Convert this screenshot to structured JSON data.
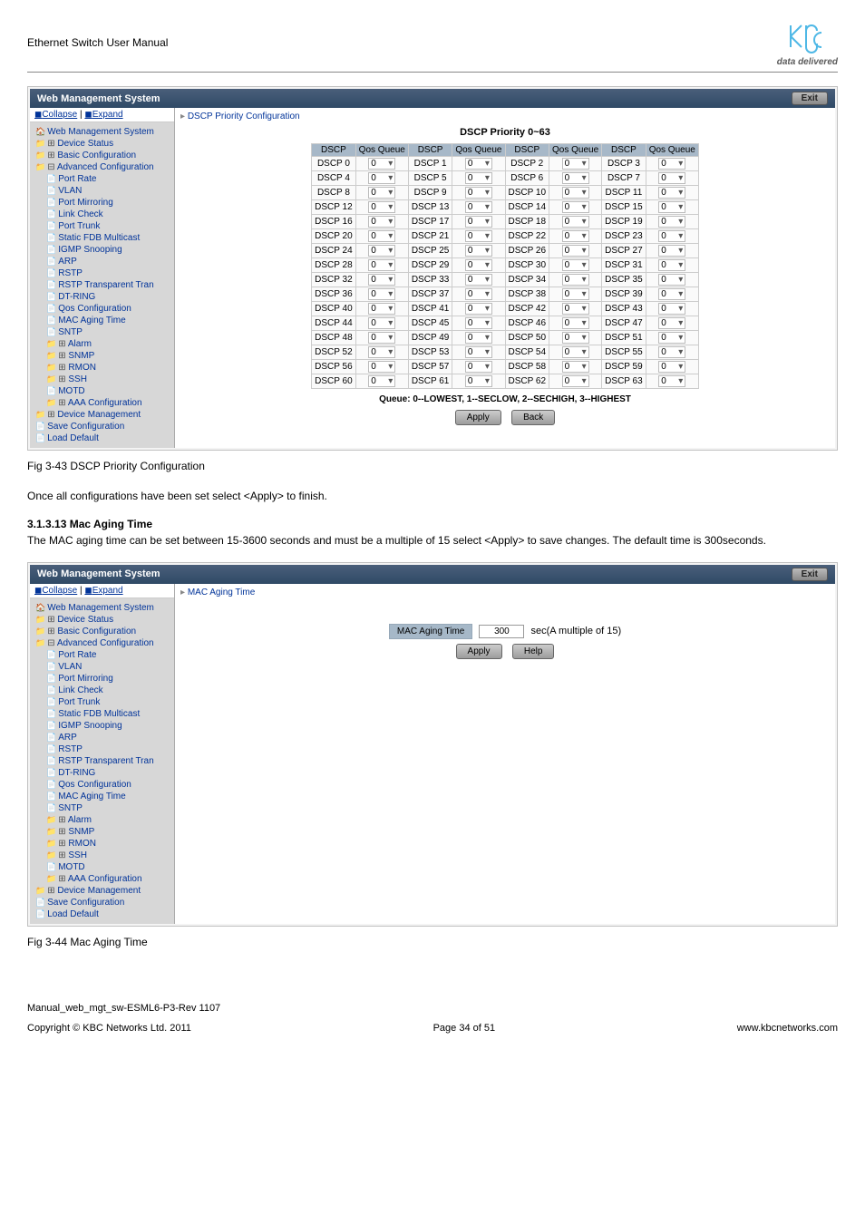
{
  "header": {
    "manual_title": "Ethernet Switch User Manual",
    "logo_tag": "data delivered"
  },
  "nav_toolbar": {
    "collapse": "Collapse",
    "expand": "Expand"
  },
  "tree": {
    "root": "Web Management System",
    "items": [
      {
        "lvl": 1,
        "icon": "folder",
        "prefix": "plus",
        "label": "Device Status"
      },
      {
        "lvl": 1,
        "icon": "folder",
        "prefix": "plus",
        "label": "Basic Configuration"
      },
      {
        "lvl": 1,
        "icon": "folder",
        "prefix": "minus",
        "label": "Advanced Configuration"
      },
      {
        "lvl": 2,
        "icon": "page",
        "label": "Port Rate"
      },
      {
        "lvl": 2,
        "icon": "page",
        "label": "VLAN"
      },
      {
        "lvl": 2,
        "icon": "page",
        "label": "Port Mirroring"
      },
      {
        "lvl": 2,
        "icon": "page",
        "label": "Link Check"
      },
      {
        "lvl": 2,
        "icon": "page",
        "label": "Port Trunk"
      },
      {
        "lvl": 2,
        "icon": "page",
        "label": "Static FDB Multicast"
      },
      {
        "lvl": 2,
        "icon": "page",
        "label": "IGMP Snooping"
      },
      {
        "lvl": 2,
        "icon": "page",
        "label": "ARP"
      },
      {
        "lvl": 2,
        "icon": "page",
        "label": "RSTP"
      },
      {
        "lvl": 2,
        "icon": "page",
        "label": "RSTP Transparent Tran"
      },
      {
        "lvl": 2,
        "icon": "page",
        "label": "DT-RING"
      },
      {
        "lvl": 2,
        "icon": "page",
        "label": "Qos Configuration"
      },
      {
        "lvl": 2,
        "icon": "page",
        "label": "MAC Aging Time"
      },
      {
        "lvl": 2,
        "icon": "page",
        "label": "SNTP"
      },
      {
        "lvl": 2,
        "icon": "folder",
        "prefix": "plus",
        "label": "Alarm"
      },
      {
        "lvl": 2,
        "icon": "folder",
        "prefix": "plus",
        "label": "SNMP"
      },
      {
        "lvl": 2,
        "icon": "folder",
        "prefix": "plus",
        "label": "RMON"
      },
      {
        "lvl": 2,
        "icon": "folder",
        "prefix": "plus",
        "label": "SSH"
      },
      {
        "lvl": 2,
        "icon": "page",
        "label": "MOTD"
      },
      {
        "lvl": 2,
        "icon": "folder",
        "prefix": "plus",
        "label": "AAA Configuration"
      },
      {
        "lvl": 1,
        "icon": "folder",
        "prefix": "plus",
        "label": "Device Management"
      },
      {
        "lvl": 1,
        "icon": "page",
        "label": "Save Configuration"
      },
      {
        "lvl": 1,
        "icon": "page",
        "label": "Load Default"
      }
    ]
  },
  "wms": {
    "titlebar": "Web Management System",
    "exit": "Exit"
  },
  "screen1": {
    "crumb": "DSCP Priority Configuration",
    "panel_title": "DSCP Priority  0~63",
    "th": {
      "dscp": "DSCP",
      "queue": "Qos Queue"
    },
    "queue_note": "Queue:  0--LOWEST,  1--SECLOW,  2--SECHIGH,  3--HIGHEST",
    "btn_apply": "Apply",
    "btn_back": "Back",
    "dscp_count": 64,
    "queue_value": "0"
  },
  "fig1": {
    "caption": "Fig 3-43 DSCP Priority Configuration"
  },
  "text1": "Once all configurations have been set select <Apply> to finish.",
  "section2": {
    "heading": "3.1.3.13      Mac Aging Time",
    "text": "The MAC aging time can be set between 15-3600 seconds and must be a multiple of 15 select <Apply> to save changes. The default time is 300seconds."
  },
  "screen2": {
    "crumb": "MAC Aging Time",
    "label": "MAC Aging Time",
    "value": "300",
    "suffix": "sec(A multiple of 15)",
    "btn_apply": "Apply",
    "btn_help": "Help"
  },
  "fig2": {
    "caption": "Fig 3-44 Mac Aging Time"
  },
  "footer": {
    "line1": "Manual_web_mgt_sw-ESML6-P3-Rev 1107",
    "left": "Copyright © KBC Networks Ltd. 2011",
    "center": "Page 34 of 51",
    "right": "www.kbcnetworks.com"
  },
  "style": {
    "brand_color": "#4FB8E6"
  }
}
